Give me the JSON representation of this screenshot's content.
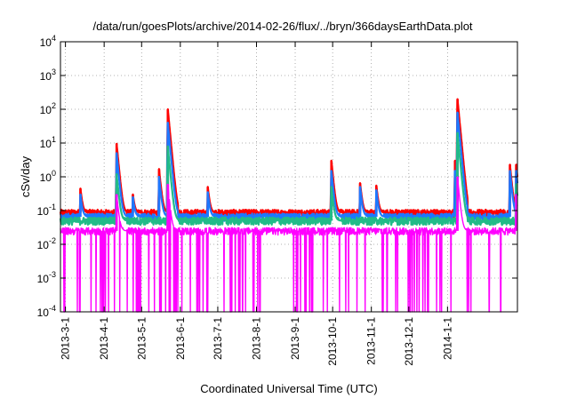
{
  "chart_data": {
    "type": "line",
    "title": "/data/run/goesPlots/archive/2014-02-26/flux/../bryn/366daysEarthData.plot",
    "xlabel": "Coordinated Universal Time (UTC)",
    "ylabel": "cSv/day",
    "x_range": [
      "2013-02-25",
      "2014-02-26"
    ],
    "ylim": [
      0.0001,
      10000
    ],
    "y_scale": "log",
    "grid": true,
    "x_ticks": [
      {
        "date": "2013-03-01",
        "label": "2013-3-1"
      },
      {
        "date": "2013-04-01",
        "label": "2013-4-1"
      },
      {
        "date": "2013-05-01",
        "label": "2013-5-1"
      },
      {
        "date": "2013-06-01",
        "label": "2013-6-1"
      },
      {
        "date": "2013-07-01",
        "label": "2013-7-1"
      },
      {
        "date": "2013-08-01",
        "label": "2013-8-1"
      },
      {
        "date": "2013-09-01",
        "label": "2013-9-1"
      },
      {
        "date": "2013-10-01",
        "label": "2013-10-1"
      },
      {
        "date": "2013-11-01",
        "label": "2013-11-1"
      },
      {
        "date": "2013-12-01",
        "label": "2013-12-1"
      },
      {
        "date": "2014-01-01",
        "label": "2014-1-1"
      }
    ],
    "y_ticks": [
      {
        "value": 0.0001,
        "base": "10",
        "exp": "-4"
      },
      {
        "value": 0.001,
        "base": "10",
        "exp": "-3"
      },
      {
        "value": 0.01,
        "base": "10",
        "exp": "-2"
      },
      {
        "value": 0.1,
        "base": "10",
        "exp": "-1"
      },
      {
        "value": 1,
        "base": "10",
        "exp": "0"
      },
      {
        "value": 10,
        "base": "10",
        "exp": "1"
      },
      {
        "value": 100,
        "base": "10",
        "exp": "2"
      },
      {
        "value": 1000,
        "base": "10",
        "exp": "3"
      },
      {
        "value": 10000,
        "base": "10",
        "exp": "4"
      }
    ],
    "series": [
      {
        "color": "#ff0000",
        "baseline": 0.085,
        "spikes": [
          [
            "2013-03-13",
            0.45
          ],
          [
            "2013-04-11",
            9.5
          ],
          [
            "2013-04-24",
            0.3
          ],
          [
            "2013-05-15",
            1.7
          ],
          [
            "2013-05-22",
            100
          ],
          [
            "2013-06-23",
            0.5
          ],
          [
            "2013-09-30",
            3
          ],
          [
            "2013-10-23",
            0.65
          ],
          [
            "2013-11-05",
            0.55
          ],
          [
            "2014-01-07",
            3
          ],
          [
            "2014-01-09",
            200
          ],
          [
            "2014-02-20",
            2.3
          ],
          [
            "2014-02-25",
            2.3
          ]
        ]
      },
      {
        "color": "#1e78ff",
        "baseline": 0.065,
        "spikes": [
          [
            "2013-03-13",
            0.3
          ],
          [
            "2013-04-11",
            5
          ],
          [
            "2013-04-24",
            0.25
          ],
          [
            "2013-05-15",
            1
          ],
          [
            "2013-05-22",
            40
          ],
          [
            "2013-06-23",
            0.35
          ],
          [
            "2013-09-30",
            1.5
          ],
          [
            "2013-10-23",
            0.5
          ],
          [
            "2013-11-05",
            0.4
          ],
          [
            "2014-01-07",
            1.5
          ],
          [
            "2014-01-09",
            80
          ],
          [
            "2014-02-20",
            1.5
          ],
          [
            "2014-02-25",
            1.5
          ]
        ]
      },
      {
        "color": "#22bb88",
        "baseline": 0.05,
        "spikes": [
          [
            "2013-04-11",
            1.2
          ],
          [
            "2013-05-22",
            8
          ],
          [
            "2013-09-30",
            0.5
          ],
          [
            "2014-01-09",
            20
          ],
          [
            "2014-02-25",
            0.6
          ]
        ]
      },
      {
        "color": "#ff00ff",
        "baseline": 0.025,
        "low_floor": 0.0001,
        "spikes": [
          [
            "2013-04-11",
            0.3
          ],
          [
            "2013-05-22",
            0.6
          ],
          [
            "2014-01-09",
            1.0
          ],
          [
            "2014-02-25",
            0.3
          ]
        ]
      }
    ]
  }
}
